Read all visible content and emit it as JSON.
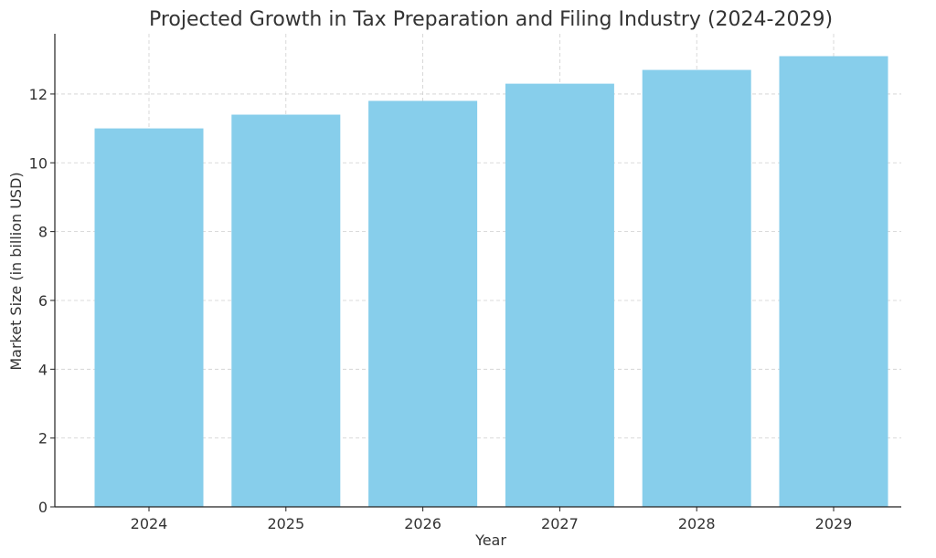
{
  "chart_data": {
    "type": "bar",
    "title": "Projected Growth in Tax Preparation and Filing Industry (2024-2029)",
    "xlabel": "Year",
    "ylabel": "Market Size (in billion USD)",
    "categories": [
      "2024",
      "2025",
      "2026",
      "2027",
      "2028",
      "2029"
    ],
    "values": [
      11.0,
      11.4,
      11.8,
      12.3,
      12.7,
      13.1
    ],
    "ylim": [
      0,
      13.75
    ],
    "yticks": [
      0,
      2,
      4,
      6,
      8,
      10,
      12
    ],
    "ytick_labels": [
      "0",
      "2",
      "4",
      "6",
      "8",
      "10",
      "12"
    ],
    "grid": true,
    "bar_color": "#87ceeb",
    "axis_color": "#222222",
    "text_color": "#333333"
  }
}
